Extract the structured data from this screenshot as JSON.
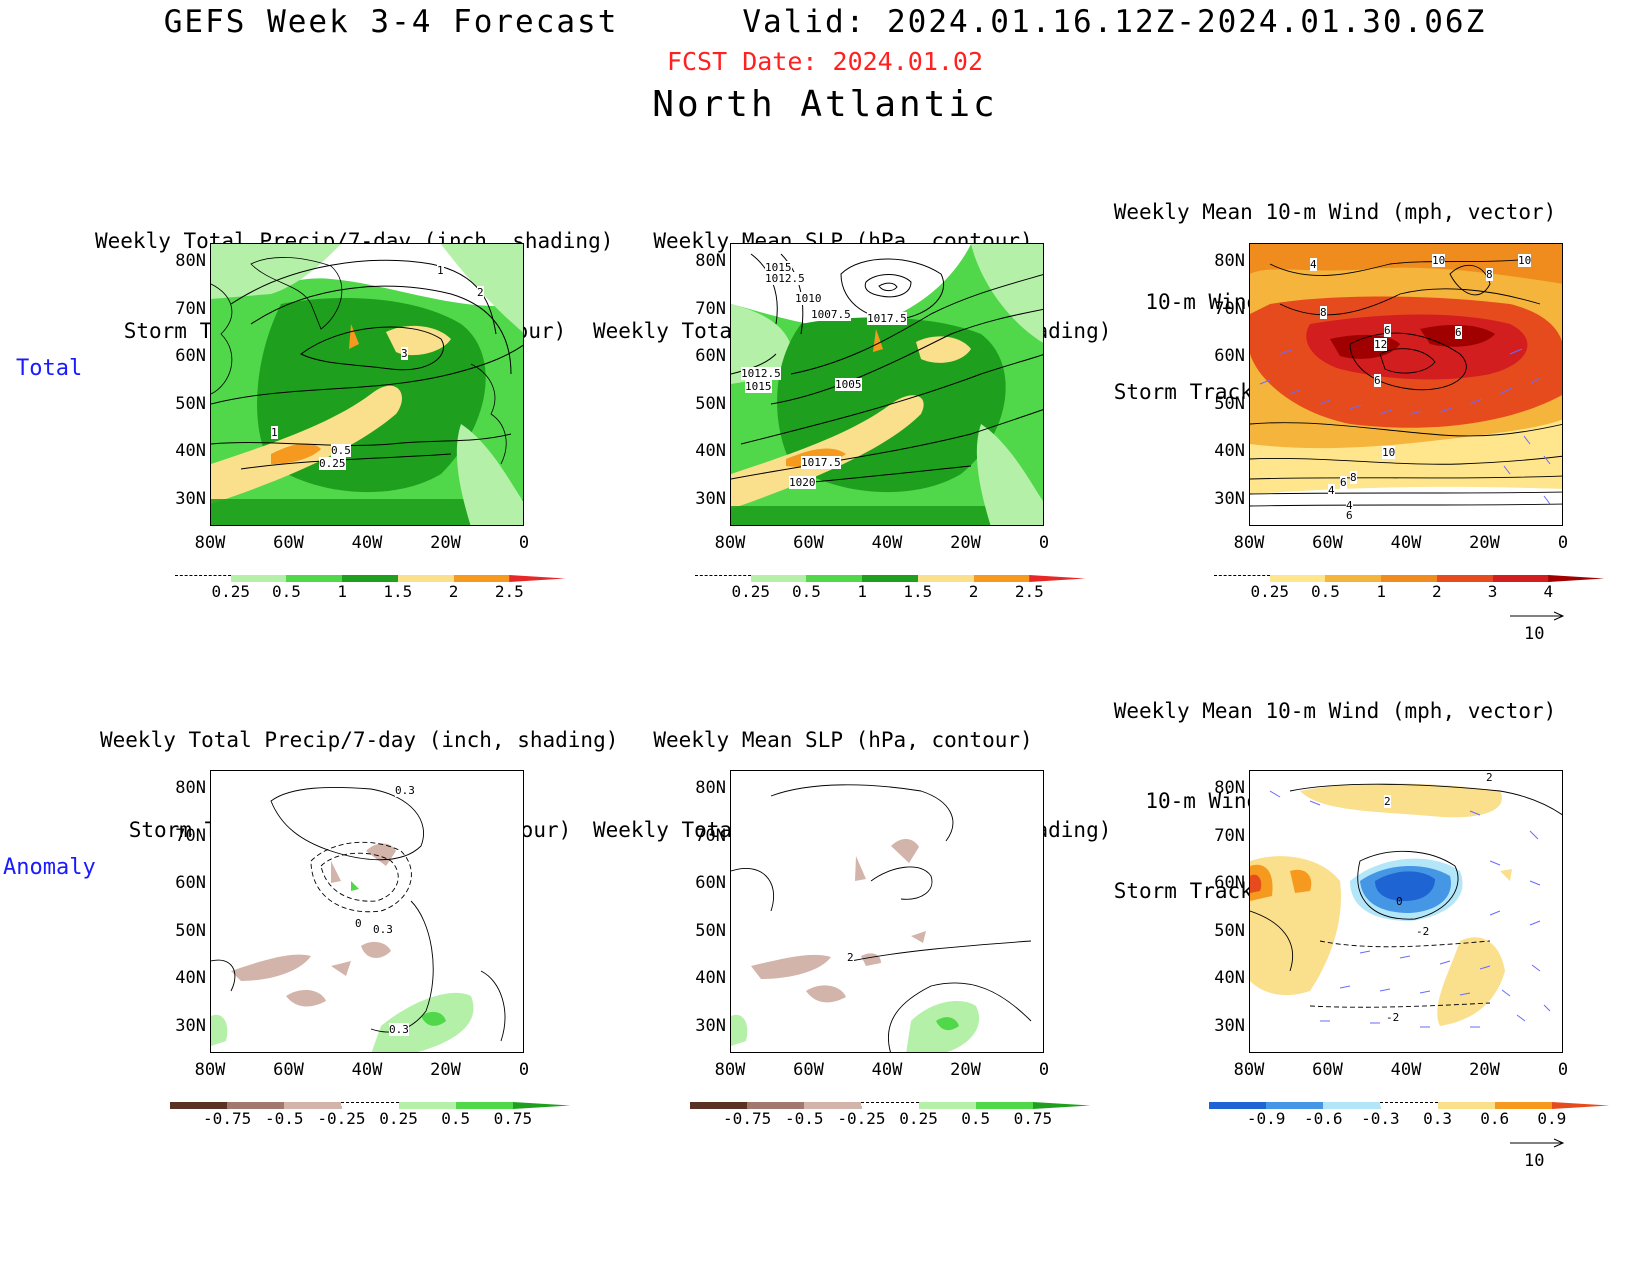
{
  "header": {
    "title": "GEFS Week 3-4 Forecast      Valid: 2024.01.16.12Z-2024.01.30.06Z",
    "fcst_date": "FCST Date: 2024.01.02",
    "region": "North Atlantic"
  },
  "row_labels": [
    "Total",
    "Anomaly"
  ],
  "panel_titles": {
    "p1": [
      "Weekly Total Precip/7-day (inch, shading)",
      "Storm Track Density/7-day (contour)"
    ],
    "p2": [
      "Weekly Mean SLP (hPa, contour)",
      "Weekly Total Precip/7-day (inch, shading)"
    ],
    "p3": [
      "Weekly Mean 10-m Wind (mph, vector)",
      "10-m Wind Speed (mph, contour)",
      "Storm Track Density/7-day (shading)"
    ]
  },
  "lat_ticks": [
    "80N",
    "70N",
    "60N",
    "50N",
    "40N",
    "30N"
  ],
  "lon_ticks": [
    "80W",
    "60W",
    "40W",
    "20W",
    "0"
  ],
  "contour_labels": {
    "p1_total": [
      "1",
      "2",
      "3",
      "1",
      "0.5",
      "0.25"
    ],
    "p2_total": [
      "1015",
      "1012.5",
      "1010",
      "1007.5",
      "1017.5",
      "1012.5",
      "1015",
      "1005",
      "1017.5",
      "1020"
    ],
    "p3_total": [
      "4",
      "10",
      "10",
      "8",
      "8",
      "6",
      "12",
      "6",
      "6",
      "10",
      "8",
      "6",
      "4",
      "4",
      "6"
    ],
    "p1_anom": [
      "0.3",
      "0",
      "0.3",
      "0.3"
    ],
    "p2_anom": [
      "2"
    ],
    "p3_anom": [
      "2",
      "2",
      "0",
      "-2",
      "-2"
    ]
  },
  "colorbars": {
    "precip_total": {
      "labels": [
        "0.25",
        "0.5",
        "1",
        "1.5",
        "2",
        "2.5"
      ],
      "colors": [
        "#ffffff",
        "#b4f0a8",
        "#50d84a",
        "#1ea01e",
        "#fae08c",
        "#f59a1e",
        "#e62828"
      ]
    },
    "storm_total": {
      "labels": [
        "0.25",
        "0.5",
        "1",
        "2",
        "3",
        "4"
      ],
      "colors": [
        "#ffffff",
        "#ffe68c",
        "#f5b43c",
        "#f08c1e",
        "#e64b1e",
        "#d21e1e",
        "#a00000"
      ]
    },
    "precip_anom": {
      "labels": [
        "-0.75",
        "-0.5",
        "-0.25",
        "0.25",
        "0.5",
        "0.75"
      ],
      "colors": [
        "#5a3223",
        "#a0786e",
        "#d2b4aa",
        "#ffffff",
        "#b4f0a8",
        "#50d84a",
        "#1ea01e"
      ]
    },
    "storm_anom": {
      "labels": [
        "-0.9",
        "-0.6",
        "-0.3",
        "0.3",
        "0.6",
        "0.9"
      ],
      "colors": [
        "#1e64d2",
        "#4696e6",
        "#b4e6fa",
        "#ffffff",
        "#fae08c",
        "#f59a1e",
        "#e64b1e"
      ]
    }
  },
  "vector_reference": "10",
  "colors": {
    "label_blue": "#1a1aff",
    "fcst_red": "#ff2020",
    "vector": "#6a6aff"
  }
}
